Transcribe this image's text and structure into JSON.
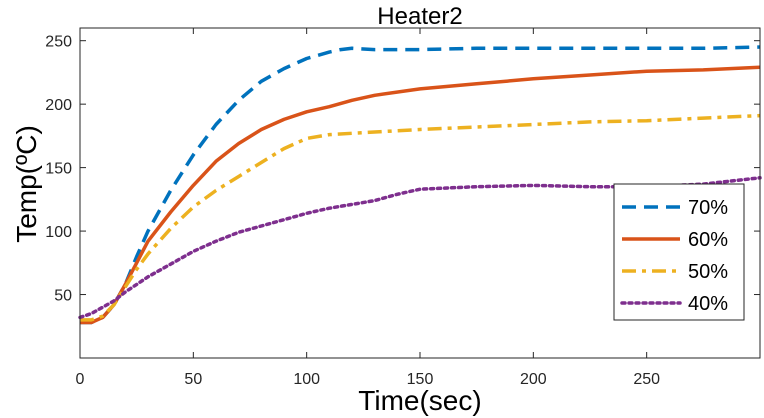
{
  "chart_data": {
    "type": "line",
    "title": "Heater2",
    "xlabel": "Time(sec)",
    "ylabel": "Temp(ºC)",
    "xlim": [
      0,
      300
    ],
    "ylim": [
      0,
      260
    ],
    "xticks": [
      0,
      50,
      100,
      150,
      200,
      250
    ],
    "yticks": [
      50,
      100,
      150,
      200,
      250
    ],
    "grid": false,
    "legend_position": "right",
    "series": [
      {
        "name": "70%",
        "color": "#0072BD",
        "style": "dashed",
        "x": [
          0,
          5,
          10,
          15,
          20,
          25,
          30,
          40,
          50,
          60,
          70,
          80,
          90,
          100,
          110,
          115,
          120,
          130,
          150,
          175,
          200,
          225,
          250,
          275,
          300
        ],
        "y": [
          28,
          28,
          32,
          42,
          58,
          80,
          100,
          132,
          160,
          184,
          203,
          218,
          228,
          236,
          241,
          243,
          244,
          243,
          243,
          244,
          244,
          244,
          244,
          244,
          245
        ]
      },
      {
        "name": "60%",
        "color": "#D95319",
        "style": "solid",
        "x": [
          0,
          5,
          10,
          15,
          20,
          25,
          30,
          40,
          50,
          60,
          70,
          80,
          90,
          100,
          110,
          120,
          130,
          150,
          175,
          200,
          225,
          250,
          275,
          300
        ],
        "y": [
          28,
          28,
          32,
          42,
          58,
          75,
          92,
          115,
          136,
          155,
          169,
          180,
          188,
          194,
          198,
          203,
          207,
          212,
          216,
          220,
          223,
          226,
          227,
          229
        ]
      },
      {
        "name": "50%",
        "color": "#EDB120",
        "style": "dashdot",
        "x": [
          0,
          5,
          10,
          15,
          20,
          25,
          30,
          40,
          50,
          60,
          70,
          80,
          90,
          100,
          110,
          120,
          150,
          175,
          200,
          225,
          250,
          275,
          300
        ],
        "y": [
          30,
          30,
          33,
          42,
          56,
          70,
          82,
          102,
          119,
          132,
          143,
          154,
          165,
          173,
          176,
          177,
          180,
          182,
          184,
          186,
          187,
          189,
          191
        ]
      },
      {
        "name": "40%",
        "color": "#7E2F8E",
        "style": "dotted",
        "x": [
          0,
          5,
          10,
          15,
          20,
          25,
          30,
          40,
          50,
          60,
          70,
          80,
          90,
          100,
          110,
          120,
          130,
          140,
          150,
          175,
          200,
          225,
          250,
          275,
          300
        ],
        "y": [
          32,
          35,
          40,
          45,
          52,
          58,
          64,
          74,
          84,
          92,
          99,
          104,
          109,
          114,
          118,
          121,
          124,
          129,
          133,
          135,
          136,
          135,
          135,
          137,
          142
        ]
      }
    ]
  }
}
